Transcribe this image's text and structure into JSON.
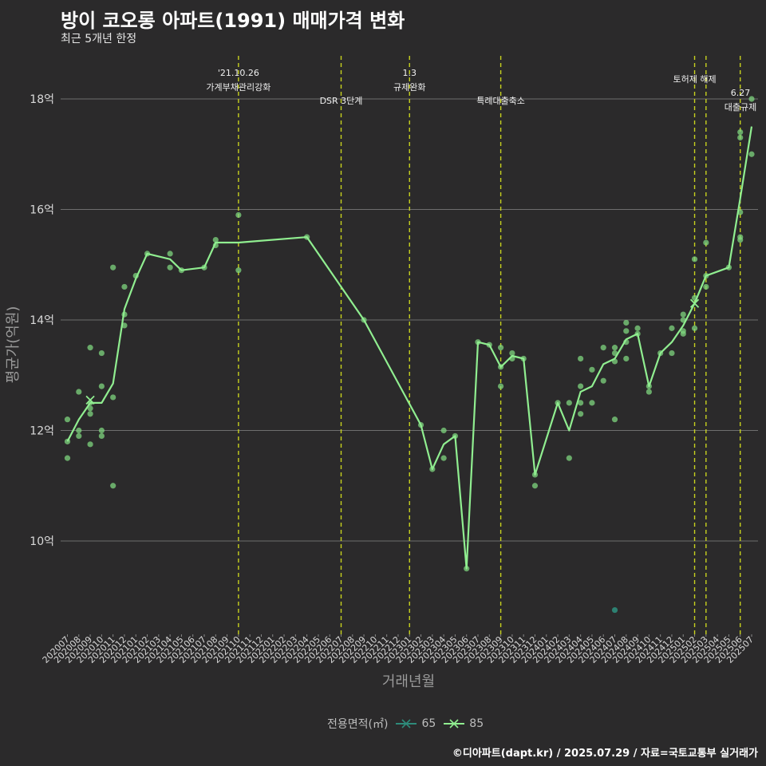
{
  "title": "방이 코오롱 아파트(1991) 매매가격 변화",
  "subtitle": "최근 5개년 한정",
  "caption": "©디아파트(dapt.kr) / 2025.07.29 / 자료=국토교통부 실거래가",
  "legend_title": "전용면적(㎡)",
  "colors": {
    "background": "#2b2a2b",
    "grid": "#6e6e6e",
    "line85": "#90ee90",
    "point85": "#7fd67f",
    "series65": "#2e8b7a",
    "vline": "#c8d21e",
    "text": "#ffffff",
    "axis_text": "#d9d9d9"
  },
  "chart_data": {
    "type": "line",
    "title": "방이 코오롱 아파트(1991) 매매가격 변화",
    "xlabel": "거래년월",
    "ylabel": "평균가(억원)",
    "ylim": [
      8.3,
      18.8
    ],
    "yticks": [
      10,
      12,
      14,
      16,
      18
    ],
    "ytick_labels": [
      "10억",
      "12억",
      "14억",
      "16억",
      "18억"
    ],
    "categories": [
      "202007",
      "202008",
      "202009",
      "202010",
      "202011",
      "202012",
      "202101",
      "202102",
      "202103",
      "202104",
      "202105",
      "202106",
      "202107",
      "202108",
      "202109",
      "202110",
      "202111",
      "202112",
      "202201",
      "202202",
      "202203",
      "202204",
      "202205",
      "202206",
      "202207",
      "202208",
      "202209",
      "202210",
      "202211",
      "202212",
      "202301",
      "202302",
      "202303",
      "202304",
      "202305",
      "202306",
      "202307",
      "202308",
      "202309",
      "202310",
      "202311",
      "202312",
      "202401",
      "202402",
      "202403",
      "202404",
      "202405",
      "202406",
      "202407",
      "202408",
      "202409",
      "202410",
      "202411",
      "202412",
      "202501",
      "202502",
      "202503",
      "202504",
      "202505",
      "202506",
      "202507"
    ],
    "series": [
      {
        "name": "85",
        "line": [
          [
            "202007",
            11.8
          ],
          [
            "202008",
            12.2
          ],
          [
            "202009",
            12.5
          ],
          [
            "202010",
            12.5
          ],
          [
            "202011",
            12.85
          ],
          [
            "202012",
            14.2
          ],
          [
            "202101",
            14.75
          ],
          [
            "202102",
            15.2
          ],
          [
            "202104",
            15.1
          ],
          [
            "202105",
            14.9
          ],
          [
            "202107",
            14.95
          ],
          [
            "202108",
            15.4
          ],
          [
            "202110",
            15.4
          ],
          [
            "202204",
            15.5
          ],
          [
            "202209",
            14.0
          ],
          [
            "202302",
            12.1
          ],
          [
            "202303",
            11.3
          ],
          [
            "202304",
            11.75
          ],
          [
            "202305",
            11.9
          ],
          [
            "202306",
            9.5
          ],
          [
            "202307",
            13.6
          ],
          [
            "202308",
            13.55
          ],
          [
            "202309",
            13.15
          ],
          [
            "202310",
            13.35
          ],
          [
            "202311",
            13.3
          ],
          [
            "202312",
            11.2
          ],
          [
            "202402",
            12.5
          ],
          [
            "202403",
            12.0
          ],
          [
            "202404",
            12.7
          ],
          [
            "202405",
            12.8
          ],
          [
            "202406",
            13.2
          ],
          [
            "202407",
            13.3
          ],
          [
            "202408",
            13.65
          ],
          [
            "202409",
            13.75
          ],
          [
            "202410",
            12.8
          ],
          [
            "202411",
            13.4
          ],
          [
            "202412",
            13.6
          ],
          [
            "202501",
            13.9
          ],
          [
            "202502",
            14.3
          ],
          [
            "202503",
            14.8
          ],
          [
            "202505",
            14.95
          ],
          [
            "202506",
            16.2
          ],
          [
            "202507",
            17.5
          ]
        ],
        "points": [
          [
            "202007",
            11.8
          ],
          [
            "202007",
            12.2
          ],
          [
            "202007",
            11.5
          ],
          [
            "202008",
            12.0
          ],
          [
            "202008",
            11.9
          ],
          [
            "202008",
            12.7
          ],
          [
            "202009",
            12.5
          ],
          [
            "202009",
            12.3
          ],
          [
            "202009",
            12.4
          ],
          [
            "202009",
            11.75
          ],
          [
            "202009",
            13.5
          ],
          [
            "202010",
            12.0
          ],
          [
            "202010",
            11.9
          ],
          [
            "202010",
            12.8
          ],
          [
            "202010",
            13.4
          ],
          [
            "202011",
            12.6
          ],
          [
            "202011",
            11.0
          ],
          [
            "202011",
            14.95
          ],
          [
            "202012",
            14.1
          ],
          [
            "202012",
            13.9
          ],
          [
            "202012",
            14.6
          ],
          [
            "202101",
            14.8
          ],
          [
            "202102",
            15.2
          ],
          [
            "202104",
            15.2
          ],
          [
            "202104",
            14.95
          ],
          [
            "202105",
            14.9
          ],
          [
            "202107",
            14.95
          ],
          [
            "202108",
            15.45
          ],
          [
            "202108",
            15.35
          ],
          [
            "202110",
            15.9
          ],
          [
            "202110",
            14.9
          ],
          [
            "202204",
            15.5
          ],
          [
            "202209",
            14.0
          ],
          [
            "202302",
            12.1
          ],
          [
            "202303",
            11.3
          ],
          [
            "202304",
            12.0
          ],
          [
            "202304",
            11.5
          ],
          [
            "202305",
            11.9
          ],
          [
            "202306",
            9.5
          ],
          [
            "202307",
            13.6
          ],
          [
            "202308",
            13.55
          ],
          [
            "202309",
            13.5
          ],
          [
            "202309",
            12.8
          ],
          [
            "202309",
            13.15
          ],
          [
            "202310",
            13.4
          ],
          [
            "202310",
            13.3
          ],
          [
            "202311",
            13.3
          ],
          [
            "202312",
            11.2
          ],
          [
            "202312",
            11.0
          ],
          [
            "202402",
            12.5
          ],
          [
            "202403",
            12.5
          ],
          [
            "202403",
            11.5
          ],
          [
            "202404",
            13.3
          ],
          [
            "202404",
            12.8
          ],
          [
            "202404",
            12.5
          ],
          [
            "202404",
            12.3
          ],
          [
            "202405",
            12.5
          ],
          [
            "202405",
            13.1
          ],
          [
            "202406",
            13.5
          ],
          [
            "202406",
            12.9
          ],
          [
            "202407",
            13.5
          ],
          [
            "202407",
            13.4
          ],
          [
            "202407",
            13.25
          ],
          [
            "202407",
            12.2
          ],
          [
            "202408",
            13.95
          ],
          [
            "202408",
            13.8
          ],
          [
            "202408",
            13.6
          ],
          [
            "202408",
            13.3
          ],
          [
            "202409",
            13.85
          ],
          [
            "202409",
            13.75
          ],
          [
            "202410",
            12.8
          ],
          [
            "202410",
            12.7
          ],
          [
            "202411",
            13.4
          ],
          [
            "202412",
            13.4
          ],
          [
            "202412",
            13.85
          ],
          [
            "202501",
            14.1
          ],
          [
            "202501",
            13.8
          ],
          [
            "202501",
            13.75
          ],
          [
            "202501",
            14.0
          ],
          [
            "202502",
            15.1
          ],
          [
            "202502",
            14.4
          ],
          [
            "202502",
            13.85
          ],
          [
            "202503",
            15.4
          ],
          [
            "202503",
            14.8
          ],
          [
            "202503",
            14.6
          ],
          [
            "202505",
            14.95
          ],
          [
            "202506",
            17.4
          ],
          [
            "202506",
            17.3
          ],
          [
            "202506",
            15.95
          ],
          [
            "202506",
            15.5
          ],
          [
            "202506",
            15.45
          ],
          [
            "202507",
            18.0
          ],
          [
            "202507",
            17.0
          ]
        ],
        "cross_markers": [
          [
            "202009",
            12.55
          ],
          [
            "202502",
            14.3
          ]
        ]
      },
      {
        "name": "65",
        "points": [
          [
            "202407",
            8.75
          ]
        ],
        "cross_markers": []
      }
    ],
    "annotations": [
      {
        "x": "202110",
        "label1": "'21.10.26",
        "label2": "가계부채관리강화",
        "row": "high"
      },
      {
        "x": "202207",
        "label1": "DSR 3단계",
        "label2": "",
        "row": "low"
      },
      {
        "x": "202301",
        "label1": "1.3",
        "label2": "규제완화",
        "row": "high"
      },
      {
        "x": "202309",
        "label1": "특례대출축소",
        "label2": "",
        "row": "low"
      },
      {
        "x": "202502",
        "label1": "토허제 해제",
        "label2": "",
        "row": "mid"
      },
      {
        "x": "202503",
        "label1": "",
        "label2": "",
        "row": "none"
      },
      {
        "x": "202506",
        "label1": "6.27",
        "label2": "대출규제",
        "row": "right"
      }
    ],
    "legend": [
      "65",
      "85"
    ]
  }
}
